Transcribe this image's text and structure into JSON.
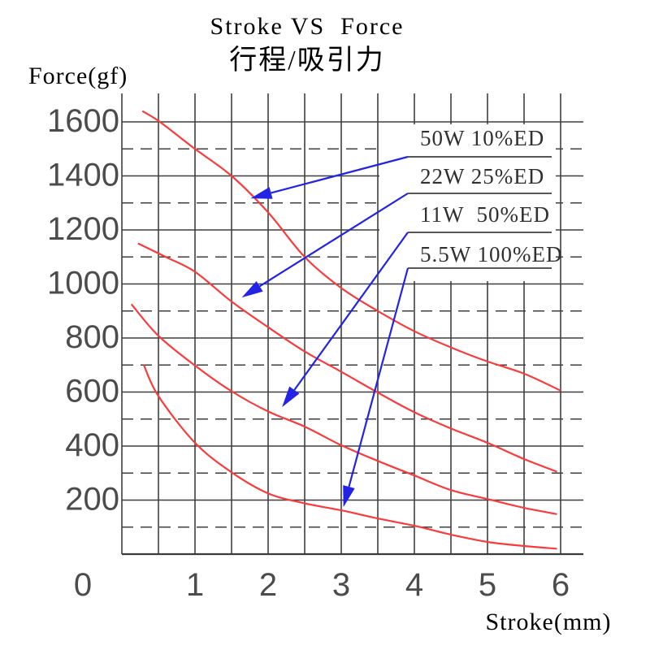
{
  "title": "Stroke VS  Force",
  "subtitle": "行程/吸引力",
  "y_axis_label": "Force(gf)",
  "x_axis_label": "Stroke(mm)",
  "colors": {
    "grid": "#3f3f3f",
    "axis": "#3a3a3a",
    "curve": "#f93b3b",
    "leader": "#2323e6",
    "text": "#4c4c4c",
    "background": "#ffffff"
  },
  "chart_data": {
    "type": "line",
    "title": "Stroke VS  Force",
    "subtitle": "行程/吸引力",
    "xlabel": "Stroke(mm)",
    "ylabel": "Force(gf)",
    "xlim": [
      0,
      6
    ],
    "ylim": [
      0,
      1700
    ],
    "x_ticks": [
      0,
      1,
      2,
      3,
      4,
      5,
      6
    ],
    "y_ticks": [
      200,
      400,
      600,
      800,
      1000,
      1200,
      1400,
      1600
    ],
    "dashed_gridlines_y": [
      100,
      300,
      500,
      700,
      900,
      1100,
      1300,
      1500
    ],
    "grid": "on",
    "legend_position": "top-right",
    "series": [
      {
        "name": "50W 10%ED",
        "points": [
          [
            0.28,
            1640
          ],
          [
            0.52,
            1600
          ],
          [
            1,
            1500
          ],
          [
            1.5,
            1400
          ],
          [
            2,
            1265
          ],
          [
            2.5,
            1100
          ],
          [
            3,
            985
          ],
          [
            3.5,
            900
          ],
          [
            4,
            825
          ],
          [
            4.5,
            765
          ],
          [
            5,
            713
          ],
          [
            5.5,
            668
          ],
          [
            6,
            605
          ]
        ]
      },
      {
        "name": "22W 25%ED",
        "points": [
          [
            0.22,
            1150
          ],
          [
            0.6,
            1100
          ],
          [
            1,
            1045
          ],
          [
            1.5,
            935
          ],
          [
            2,
            840
          ],
          [
            2.5,
            750
          ],
          [
            3,
            675
          ],
          [
            3.5,
            598
          ],
          [
            4,
            525
          ],
          [
            4.5,
            465
          ],
          [
            5,
            412
          ],
          [
            5.5,
            352
          ],
          [
            5.95,
            305
          ]
        ]
      },
      {
        "name": "11W  50%ED",
        "points": [
          [
            0.13,
            925
          ],
          [
            0.5,
            808
          ],
          [
            1,
            698
          ],
          [
            1.5,
            603
          ],
          [
            2,
            528
          ],
          [
            2.5,
            472
          ],
          [
            3,
            403
          ],
          [
            3.5,
            345
          ],
          [
            4,
            291
          ],
          [
            4.5,
            237
          ],
          [
            5,
            204
          ],
          [
            5.5,
            171
          ],
          [
            5.95,
            148
          ]
        ]
      },
      {
        "name": "5.5W 100%ED",
        "points": [
          [
            0.3,
            700
          ],
          [
            0.5,
            585
          ],
          [
            1,
            412
          ],
          [
            1.5,
            303
          ],
          [
            2,
            225
          ],
          [
            2.5,
            188
          ],
          [
            3,
            162
          ],
          [
            3.5,
            132
          ],
          [
            4,
            105
          ],
          [
            4.5,
            72
          ],
          [
            5,
            45
          ],
          [
            5.5,
            30
          ],
          [
            5.95,
            20
          ]
        ]
      }
    ],
    "annotation_arrows": [
      {
        "series": "50W 10%ED",
        "tip": [
          1.76,
          1317
        ]
      },
      {
        "series": "22W 25%ED",
        "tip": [
          1.64,
          950
        ]
      },
      {
        "series": "11W  50%ED",
        "tip": [
          2.19,
          544
        ]
      },
      {
        "series": "5.5W 100%ED",
        "tip": [
          3.03,
          174
        ]
      }
    ]
  }
}
